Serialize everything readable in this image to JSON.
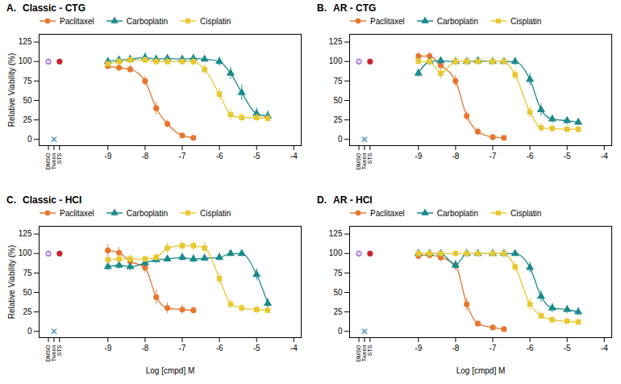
{
  "chart_data": [
    {
      "type": "line",
      "title": "Classic - CTG",
      "annotations": [
        "A."
      ],
      "ylabel": "Relative Viability (%)",
      "xlim": [
        -10.85,
        -3.8
      ],
      "ylim": [
        -8,
        135
      ],
      "xticks": [
        {
          "value": -10.6,
          "label": "DMSO"
        },
        {
          "value": -10.45,
          "label": "Tween"
        },
        {
          "value": -10.3,
          "label": "STS"
        },
        -9,
        -8,
        -7,
        -6,
        -5,
        -4
      ],
      "yticks": [
        0,
        25,
        50,
        75,
        100,
        125
      ],
      "grid": false,
      "legend": "top",
      "series": [
        {
          "name": "Paclitaxel",
          "color": "#E8762E",
          "marker": "circle",
          "line_style": "solid",
          "x": [
            -9.0,
            -8.7,
            -8.4,
            -8.0,
            -7.7,
            -7.4,
            -7.0,
            -6.7
          ],
          "values": [
            94,
            92,
            90,
            75,
            40,
            20,
            5,
            2
          ],
          "errors": [
            3,
            4,
            5,
            6,
            8,
            5,
            2,
            1
          ]
        },
        {
          "name": "Carboplatin",
          "color": "#1B8A8A",
          "marker": "triangle",
          "line_style": "solid",
          "x": [
            -9.0,
            -8.7,
            -8.4,
            -8.0,
            -7.7,
            -7.4,
            -7.0,
            -6.7,
            -6.4,
            -6.0,
            -5.7,
            -5.4,
            -5.0,
            -4.7
          ],
          "values": [
            100,
            102,
            103,
            105,
            103,
            104,
            103,
            104,
            103,
            100,
            85,
            60,
            33,
            30
          ],
          "errors": [
            5,
            4,
            5,
            6,
            5,
            4,
            4,
            5,
            4,
            6,
            8,
            10,
            8,
            7
          ]
        },
        {
          "name": "Cisplatin",
          "color": "#E8C832",
          "marker": "square",
          "line_style": "solid",
          "x": [
            -9.0,
            -8.7,
            -8.4,
            -8.0,
            -7.7,
            -7.4,
            -7.0,
            -6.7,
            -6.4,
            -6.0,
            -5.7,
            -5.4,
            -5.0,
            -4.7
          ],
          "values": [
            97,
            100,
            102,
            102,
            100,
            100,
            100,
            100,
            90,
            58,
            32,
            28,
            28,
            27
          ],
          "errors": [
            4,
            4,
            4,
            4,
            5,
            5,
            4,
            5,
            6,
            8,
            8,
            6,
            5,
            5
          ]
        }
      ],
      "controls": [
        {
          "color": "#9966CC",
          "marker": "circle-open",
          "x": [
            -10.6
          ],
          "values": [
            100
          ],
          "errors": [
            3
          ]
        },
        {
          "color": "#CC2233",
          "marker": "circle",
          "x": [
            -10.3
          ],
          "values": [
            100
          ],
          "errors": [
            3
          ]
        },
        {
          "color": "#4488BB",
          "marker": "x",
          "x": [
            -10.45
          ],
          "values": [
            0
          ],
          "errors": [
            2
          ]
        }
      ]
    },
    {
      "type": "line",
      "title": "AR - CTG",
      "annotations": [
        "B."
      ],
      "xlim": [
        -10.85,
        -3.8
      ],
      "ylim": [
        -8,
        135
      ],
      "xticks": [
        {
          "value": -10.6,
          "label": "DMSO"
        },
        {
          "value": -10.45,
          "label": "Tween"
        },
        {
          "value": -10.3,
          "label": "STS"
        },
        -9,
        -8,
        -7,
        -6,
        -5,
        -4
      ],
      "yticks": [
        0,
        25,
        50,
        75,
        100,
        125
      ],
      "grid": false,
      "legend": "top",
      "series": [
        {
          "name": "Paclitaxel",
          "color": "#E8762E",
          "marker": "circle",
          "line_style": "solid",
          "x": [
            -9.0,
            -8.7,
            -8.4,
            -8.0,
            -7.7,
            -7.4,
            -7.0,
            -6.7
          ],
          "values": [
            107,
            107,
            95,
            75,
            30,
            10,
            3,
            2
          ],
          "errors": [
            5,
            5,
            6,
            7,
            6,
            4,
            2,
            1
          ]
        },
        {
          "name": "Carboplatin",
          "color": "#1B8A8A",
          "marker": "triangle",
          "line_style": "solid",
          "x": [
            -9.0,
            -8.7,
            -8.4,
            -8.0,
            -7.7,
            -7.4,
            -7.0,
            -6.7,
            -6.4,
            -6.0,
            -5.7,
            -5.4,
            -5.0,
            -4.7
          ],
          "values": [
            85,
            100,
            101,
            100,
            100,
            101,
            100,
            100,
            100,
            77,
            38,
            26,
            24,
            22
          ],
          "errors": [
            5,
            5,
            5,
            4,
            5,
            4,
            4,
            4,
            5,
            8,
            8,
            5,
            5,
            4
          ]
        },
        {
          "name": "Cisplatin",
          "color": "#E8C832",
          "marker": "square",
          "line_style": "solid",
          "x": [
            -9.0,
            -8.7,
            -8.4,
            -8.0,
            -7.7,
            -7.4,
            -7.0,
            -6.7,
            -6.4,
            -6.0,
            -5.7,
            -5.4,
            -5.0,
            -4.7
          ],
          "values": [
            100,
            100,
            85,
            100,
            100,
            100,
            100,
            100,
            83,
            35,
            15,
            14,
            13,
            13
          ],
          "errors": [
            4,
            4,
            8,
            6,
            5,
            4,
            5,
            5,
            6,
            8,
            6,
            5,
            4,
            4
          ]
        }
      ],
      "controls": [
        {
          "color": "#9966CC",
          "marker": "circle-open",
          "x": [
            -10.6
          ],
          "values": [
            100
          ],
          "errors": [
            3
          ]
        },
        {
          "color": "#CC2233",
          "marker": "circle",
          "x": [
            -10.3
          ],
          "values": [
            100
          ],
          "errors": [
            3
          ]
        },
        {
          "color": "#4488BB",
          "marker": "x",
          "x": [
            -10.45
          ],
          "values": [
            0
          ],
          "errors": [
            2
          ]
        }
      ]
    },
    {
      "type": "line",
      "title": "Classic - HCI",
      "annotations": [
        "C."
      ],
      "ylabel": "Relative Viability (%)",
      "xlabel": "Log [cmpd] M",
      "xlim": [
        -10.85,
        -3.8
      ],
      "ylim": [
        -8,
        135
      ],
      "xticks": [
        {
          "value": -10.6,
          "label": "DMSO"
        },
        {
          "value": -10.45,
          "label": "Tween"
        },
        {
          "value": -10.3,
          "label": "STS"
        },
        -9,
        -8,
        -7,
        -6,
        -5,
        -4
      ],
      "yticks": [
        0,
        25,
        50,
        75,
        100,
        125
      ],
      "grid": false,
      "legend": "top",
      "series": [
        {
          "name": "Paclitaxel",
          "color": "#E8762E",
          "marker": "circle",
          "line_style": "solid",
          "x": [
            -9.0,
            -8.7,
            -8.4,
            -8.0,
            -7.7,
            -7.4,
            -7.0,
            -6.7
          ],
          "values": [
            104,
            101,
            90,
            82,
            44,
            30,
            28,
            27
          ],
          "errors": [
            8,
            7,
            8,
            7,
            10,
            7,
            6,
            5
          ]
        },
        {
          "name": "Carboplatin",
          "color": "#1B8A8A",
          "marker": "triangle",
          "line_style": "solid",
          "x": [
            -9.0,
            -8.7,
            -8.4,
            -8.0,
            -7.7,
            -7.4,
            -7.0,
            -6.7,
            -6.4,
            -6.0,
            -5.7,
            -5.4,
            -5.0,
            -4.7
          ],
          "values": [
            83,
            85,
            83,
            88,
            92,
            93,
            95,
            93,
            94,
            95,
            100,
            100,
            73,
            36
          ],
          "errors": [
            5,
            5,
            5,
            5,
            5,
            4,
            5,
            5,
            4,
            5,
            4,
            4,
            8,
            7
          ]
        },
        {
          "name": "Cisplatin",
          "color": "#E8C832",
          "marker": "square",
          "line_style": "solid",
          "x": [
            -9.0,
            -8.7,
            -8.4,
            -8.0,
            -7.7,
            -7.4,
            -7.0,
            -6.7,
            -6.4,
            -6.0,
            -5.7,
            -5.4,
            -5.0,
            -4.7
          ],
          "values": [
            92,
            93,
            93,
            93,
            95,
            107,
            110,
            110,
            107,
            68,
            35,
            30,
            28,
            27
          ],
          "errors": [
            5,
            5,
            5,
            4,
            6,
            7,
            6,
            6,
            7,
            8,
            6,
            5,
            5,
            4
          ]
        }
      ],
      "controls": [
        {
          "color": "#9966CC",
          "marker": "circle-open",
          "x": [
            -10.6
          ],
          "values": [
            100
          ],
          "errors": [
            3
          ]
        },
        {
          "color": "#CC2233",
          "marker": "circle",
          "x": [
            -10.3
          ],
          "values": [
            100
          ],
          "errors": [
            3
          ]
        },
        {
          "color": "#4488BB",
          "marker": "x",
          "x": [
            -10.45
          ],
          "values": [
            0
          ],
          "errors": [
            2
          ]
        }
      ]
    },
    {
      "type": "line",
      "title": "AR - HCI",
      "annotations": [
        "D."
      ],
      "xlabel": "Log [cmpd] M",
      "xlim": [
        -10.85,
        -3.8
      ],
      "ylim": [
        -8,
        135
      ],
      "xticks": [
        {
          "value": -10.6,
          "label": "DMSO"
        },
        {
          "value": -10.45,
          "label": "Tween"
        },
        {
          "value": -10.3,
          "label": "STS"
        },
        -9,
        -8,
        -7,
        -6,
        -5,
        -4
      ],
      "yticks": [
        0,
        25,
        50,
        75,
        100,
        125
      ],
      "grid": false,
      "legend": "top",
      "series": [
        {
          "name": "Paclitaxel",
          "color": "#E8762E",
          "marker": "circle",
          "line_style": "solid",
          "x": [
            -9.0,
            -8.7,
            -8.4,
            -8.0,
            -7.7,
            -7.4,
            -7.0,
            -6.7
          ],
          "values": [
            97,
            98,
            95,
            85,
            35,
            10,
            5,
            3
          ],
          "errors": [
            5,
            4,
            5,
            6,
            8,
            4,
            2,
            2
          ]
        },
        {
          "name": "Carboplatin",
          "color": "#1B8A8A",
          "marker": "triangle",
          "line_style": "solid",
          "x": [
            -9.0,
            -8.7,
            -8.4,
            -8.0,
            -7.7,
            -7.4,
            -7.0,
            -6.7,
            -6.4,
            -6.0,
            -5.7,
            -5.4,
            -5.0,
            -4.7
          ],
          "values": [
            100,
            100,
            100,
            85,
            100,
            100,
            100,
            100,
            100,
            82,
            45,
            30,
            28,
            25
          ],
          "errors": [
            4,
            4,
            4,
            6,
            5,
            4,
            4,
            5,
            4,
            7,
            8,
            6,
            5,
            5
          ]
        },
        {
          "name": "Cisplatin",
          "color": "#E8C832",
          "marker": "square",
          "line_style": "solid",
          "x": [
            -9.0,
            -8.7,
            -8.4,
            -8.0,
            -7.7,
            -7.4,
            -7.0,
            -6.7,
            -6.4,
            -6.0,
            -5.7,
            -5.4,
            -5.0,
            -4.7
          ],
          "values": [
            100,
            100,
            100,
            100,
            100,
            100,
            100,
            100,
            83,
            35,
            20,
            15,
            13,
            12
          ],
          "errors": [
            4,
            4,
            4,
            4,
            4,
            4,
            4,
            4,
            6,
            8,
            5,
            4,
            4,
            4
          ]
        }
      ],
      "controls": [
        {
          "color": "#9966CC",
          "marker": "circle-open",
          "x": [
            -10.6
          ],
          "values": [
            100
          ],
          "errors": [
            3
          ]
        },
        {
          "color": "#CC2233",
          "marker": "circle",
          "x": [
            -10.3
          ],
          "values": [
            100
          ],
          "errors": [
            3
          ]
        },
        {
          "color": "#4488BB",
          "marker": "x",
          "x": [
            -10.45
          ],
          "values": [
            0
          ],
          "errors": [
            2
          ]
        }
      ]
    }
  ]
}
